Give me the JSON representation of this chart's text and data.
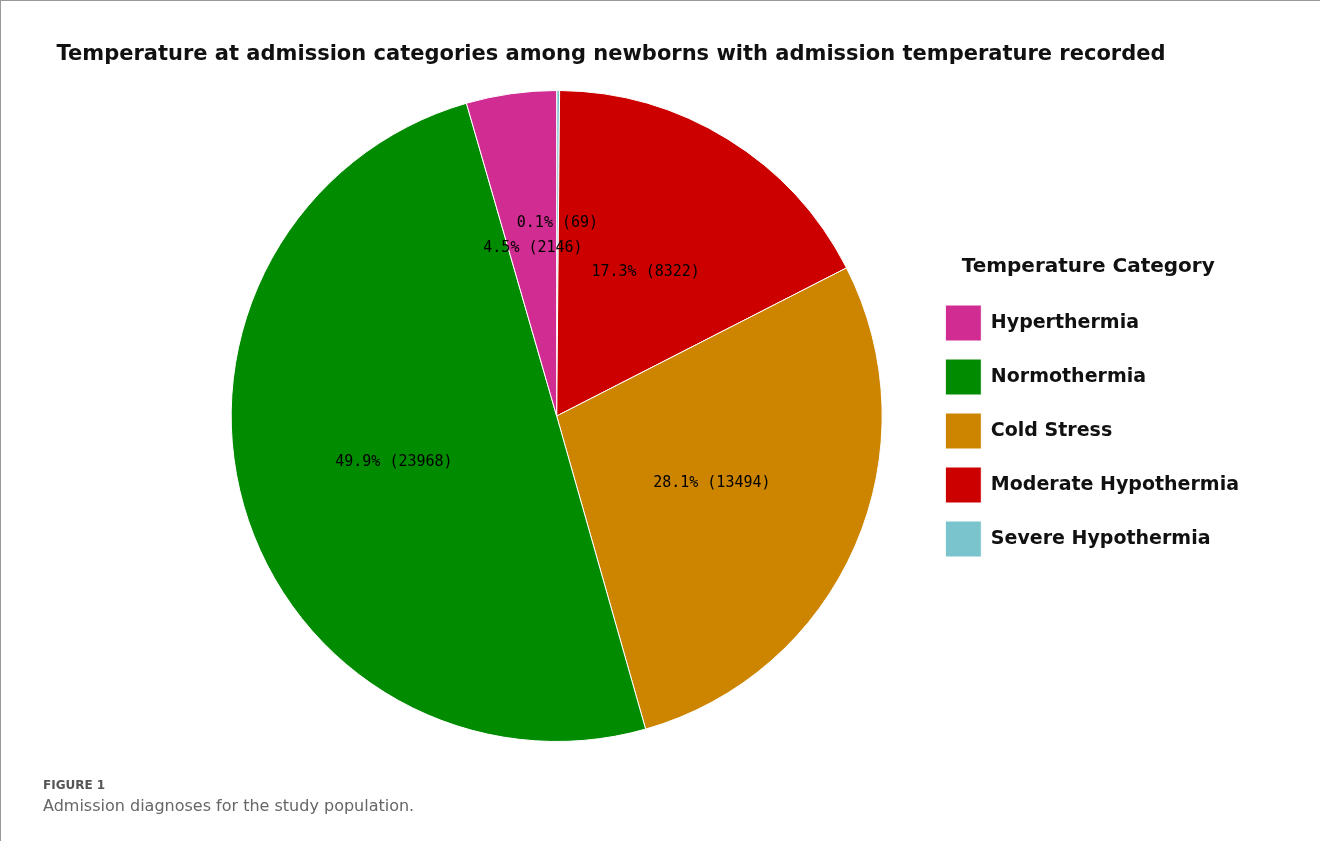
{
  "chart_data": {
    "type": "pie",
    "title": "Temperature at admission categories among newborns with admission temperature recorded",
    "categories": [
      "Hyperthermia",
      "Normothermia",
      "Cold Stress",
      "Moderate Hypothermia",
      "Severe Hypothermia"
    ],
    "values": [
      2146,
      23968,
      13494,
      8322,
      69
    ],
    "value_labels": [
      "4.5% (2146)",
      "49.9% (23968)",
      "28.1% (13494)",
      "17.3% (8322)",
      "0.1% (69)"
    ],
    "colors": [
      "#d02c91",
      "#008b00",
      "#cd8500",
      "#cd0000",
      "#7ac5cd"
    ],
    "legend_title": "Temperature Category",
    "legend": "right",
    "annotations": [
      "FIGURE 1",
      "Admission diagnoses for the study population."
    ]
  }
}
